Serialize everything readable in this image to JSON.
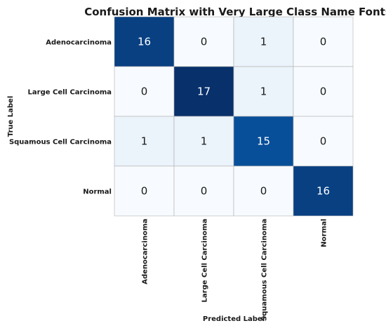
{
  "chart_data": {
    "type": "heatmap",
    "title": "Confusion Matrix with Very Large Class Name Fonts",
    "xlabel": "Predicted Label",
    "ylabel": "True Label",
    "row_labels": [
      "Adenocarcinoma",
      "Large Cell Carcinoma",
      "Squamous Cell Carcinoma",
      "Normal"
    ],
    "col_labels": [
      "Adenocarcinoma",
      "Large Cell Carcinoma",
      "Squamous Cell Carcinoma",
      "Normal"
    ],
    "matrix": [
      [
        16,
        0,
        1,
        0
      ],
      [
        0,
        17,
        1,
        0
      ],
      [
        1,
        1,
        15,
        0
      ],
      [
        0,
        0,
        0,
        16
      ]
    ],
    "vmin": 0,
    "vmax": 17,
    "colormap": "Blues",
    "cell_border_color": "#b0b0b0"
  }
}
